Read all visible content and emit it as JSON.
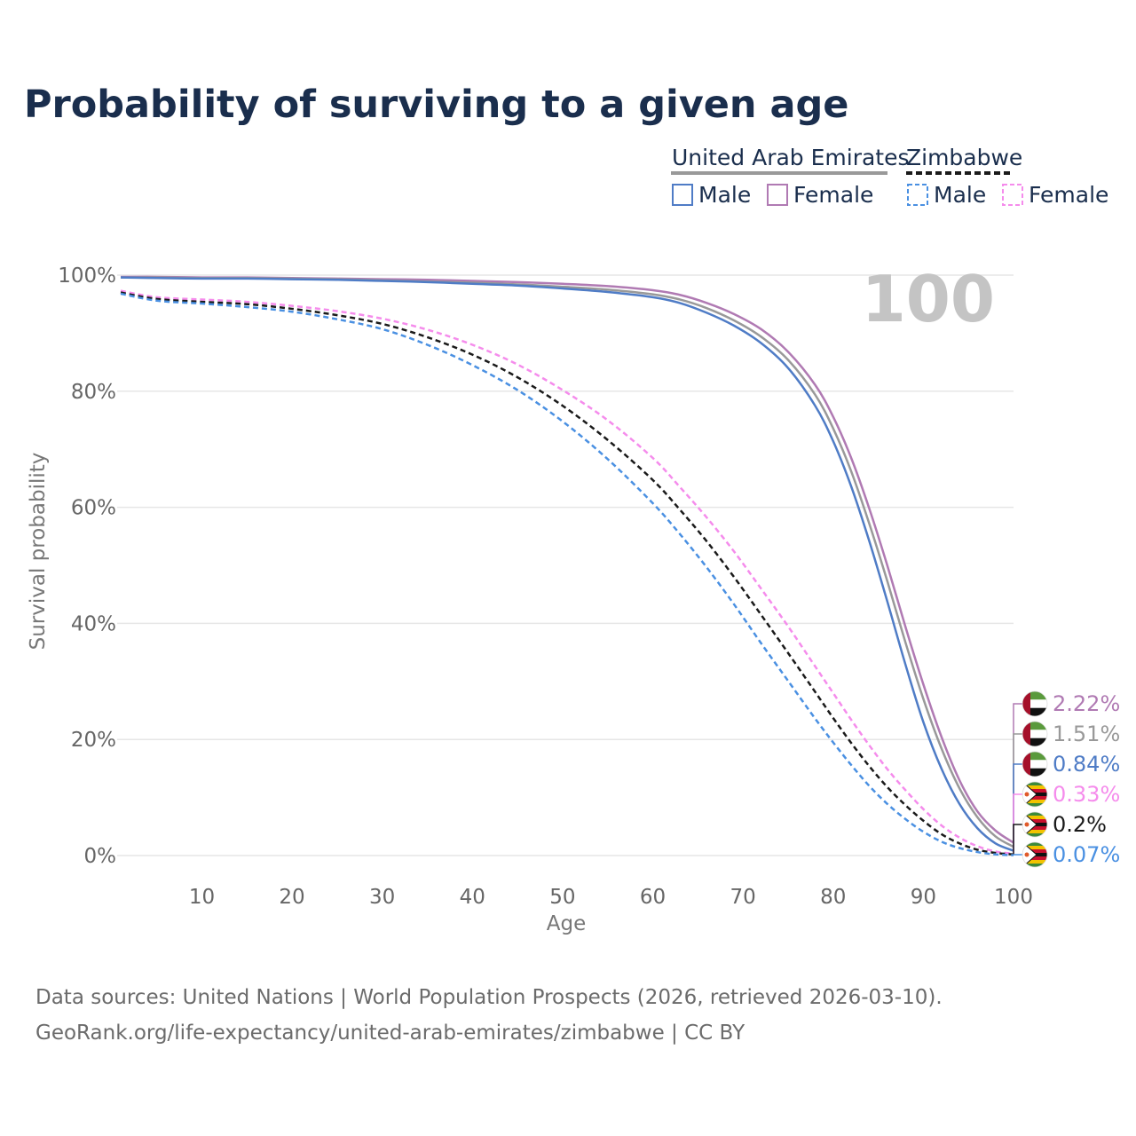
{
  "chart_data": {
    "type": "line",
    "title": "Probability of surviving to a given age",
    "xlabel": "Age",
    "ylabel": "Survival probability",
    "xlim": [
      1,
      100
    ],
    "ylim": [
      0,
      100
    ],
    "x_ticks": [
      10,
      20,
      30,
      40,
      50,
      60,
      70,
      80,
      90,
      100
    ],
    "x_tick_labels": [
      "10",
      "20",
      "30",
      "40",
      "50",
      "60",
      "70",
      "80",
      "90",
      "100"
    ],
    "y_ticks": [
      0,
      20,
      40,
      60,
      80,
      100
    ],
    "y_tick_labels": [
      "0%",
      "20%",
      "40%",
      "60%",
      "80%",
      "100%"
    ],
    "year_label": "100",
    "legend": {
      "groups": [
        {
          "country": "United Arab Emirates",
          "style": "solid",
          "items": [
            "Male",
            "Female"
          ]
        },
        {
          "country": "Zimbabwe",
          "style": "dashed",
          "items": [
            "Male",
            "Female"
          ]
        }
      ]
    },
    "x": [
      1,
      5,
      10,
      15,
      20,
      25,
      30,
      35,
      40,
      45,
      50,
      55,
      60,
      63,
      66,
      69,
      72,
      75,
      78,
      80,
      82,
      84,
      86,
      88,
      90,
      92,
      94,
      96,
      98,
      100
    ],
    "series": [
      {
        "name": "United Arab Emirates Female",
        "country": "United Arab Emirates",
        "sex": "Female",
        "color": "#b07ab3",
        "dash": false,
        "values": [
          99.7,
          99.7,
          99.6,
          99.6,
          99.5,
          99.4,
          99.3,
          99.2,
          99.0,
          98.8,
          98.5,
          98.1,
          97.4,
          96.6,
          95.2,
          93.3,
          90.7,
          86.8,
          81.1,
          75.6,
          68.5,
          59.8,
          50.0,
          39.5,
          29.5,
          20.5,
          13.0,
          7.6,
          4.3,
          2.22
        ]
      },
      {
        "name": "United Arab Emirates Total",
        "country": "United Arab Emirates",
        "sex": "Total",
        "color": "#999999",
        "dash": false,
        "values": [
          99.6,
          99.6,
          99.5,
          99.5,
          99.4,
          99.3,
          99.1,
          98.9,
          98.7,
          98.4,
          98.0,
          97.5,
          96.7,
          95.8,
          94.3,
          92.2,
          89.4,
          85.4,
          79.4,
          73.6,
          66.2,
          57.2,
          47.3,
          36.8,
          27.0,
          18.5,
          11.6,
          6.6,
          3.3,
          1.51
        ]
      },
      {
        "name": "United Arab Emirates Male",
        "country": "United Arab Emirates",
        "sex": "Male",
        "color": "#4f7cc6",
        "dash": false,
        "values": [
          99.6,
          99.5,
          99.4,
          99.4,
          99.3,
          99.2,
          99.0,
          98.8,
          98.5,
          98.2,
          97.7,
          97.1,
          96.2,
          95.2,
          93.5,
          91.3,
          88.3,
          84.0,
          77.5,
          71.4,
          63.6,
          54.2,
          43.8,
          33.0,
          23.0,
          15.0,
          8.9,
          4.7,
          2.1,
          0.84
        ]
      },
      {
        "name": "Zimbabwe Female",
        "country": "Zimbabwe",
        "sex": "Female",
        "color": "#f58cec",
        "dash": true,
        "values": [
          97.3,
          96.2,
          95.8,
          95.4,
          94.7,
          93.8,
          92.5,
          90.6,
          88.0,
          84.6,
          80.2,
          75.0,
          68.5,
          63.5,
          58.2,
          52.4,
          46.0,
          39.5,
          32.6,
          28.0,
          23.4,
          19.0,
          14.9,
          11.3,
          8.0,
          5.2,
          3.1,
          1.6,
          0.7,
          0.33
        ]
      },
      {
        "name": "Zimbabwe Total",
        "country": "Zimbabwe",
        "sex": "Total",
        "color": "#1a1a1a",
        "dash": true,
        "values": [
          97.0,
          95.9,
          95.4,
          95.0,
          94.2,
          93.1,
          91.6,
          89.3,
          86.3,
          82.4,
          77.5,
          71.6,
          64.7,
          59.6,
          54.1,
          48.0,
          41.5,
          34.9,
          28.2,
          23.7,
          19.4,
          15.4,
          11.8,
          8.7,
          6.0,
          3.7,
          2.1,
          1.0,
          0.45,
          0.2
        ]
      },
      {
        "name": "Zimbabwe Male",
        "country": "Zimbabwe",
        "sex": "Male",
        "color": "#4a90e2",
        "dash": true,
        "values": [
          96.8,
          95.6,
          95.1,
          94.5,
          93.7,
          92.4,
          90.7,
          88.0,
          84.5,
          80.2,
          74.8,
          68.3,
          60.7,
          55.4,
          49.6,
          43.3,
          36.6,
          30.1,
          23.6,
          19.5,
          15.6,
          12.0,
          8.9,
          6.3,
          4.1,
          2.4,
          1.3,
          0.6,
          0.2,
          0.07
        ]
      }
    ],
    "end_labels": [
      {
        "text": "2.22%",
        "color": "#b07ab3",
        "flag": "uae"
      },
      {
        "text": "1.51%",
        "color": "#999999",
        "flag": "uae"
      },
      {
        "text": "0.84%",
        "color": "#4f7cc6",
        "flag": "uae"
      },
      {
        "text": "0.33%",
        "color": "#f58cec",
        "flag": "zimbabwe"
      },
      {
        "text": "0.2%",
        "color": "#1a1a1a",
        "flag": "zimbabwe"
      },
      {
        "text": "0.07%",
        "color": "#4a90e2",
        "flag": "zimbabwe"
      }
    ]
  },
  "source": {
    "line1": "Data sources: United Nations | World Population Prospects (2026, retrieved 2026-03-10).",
    "line2": "GeoRank.org/life-expectancy/united-arab-emirates/zimbabwe | CC BY"
  },
  "colors": {
    "uae_male": "#4f7cc6",
    "uae_female": "#b07ab3",
    "zim_male": "#4a90e2",
    "zim_female": "#f58cec",
    "title": "#1a2e4d",
    "grid": "#e6e6e6"
  }
}
